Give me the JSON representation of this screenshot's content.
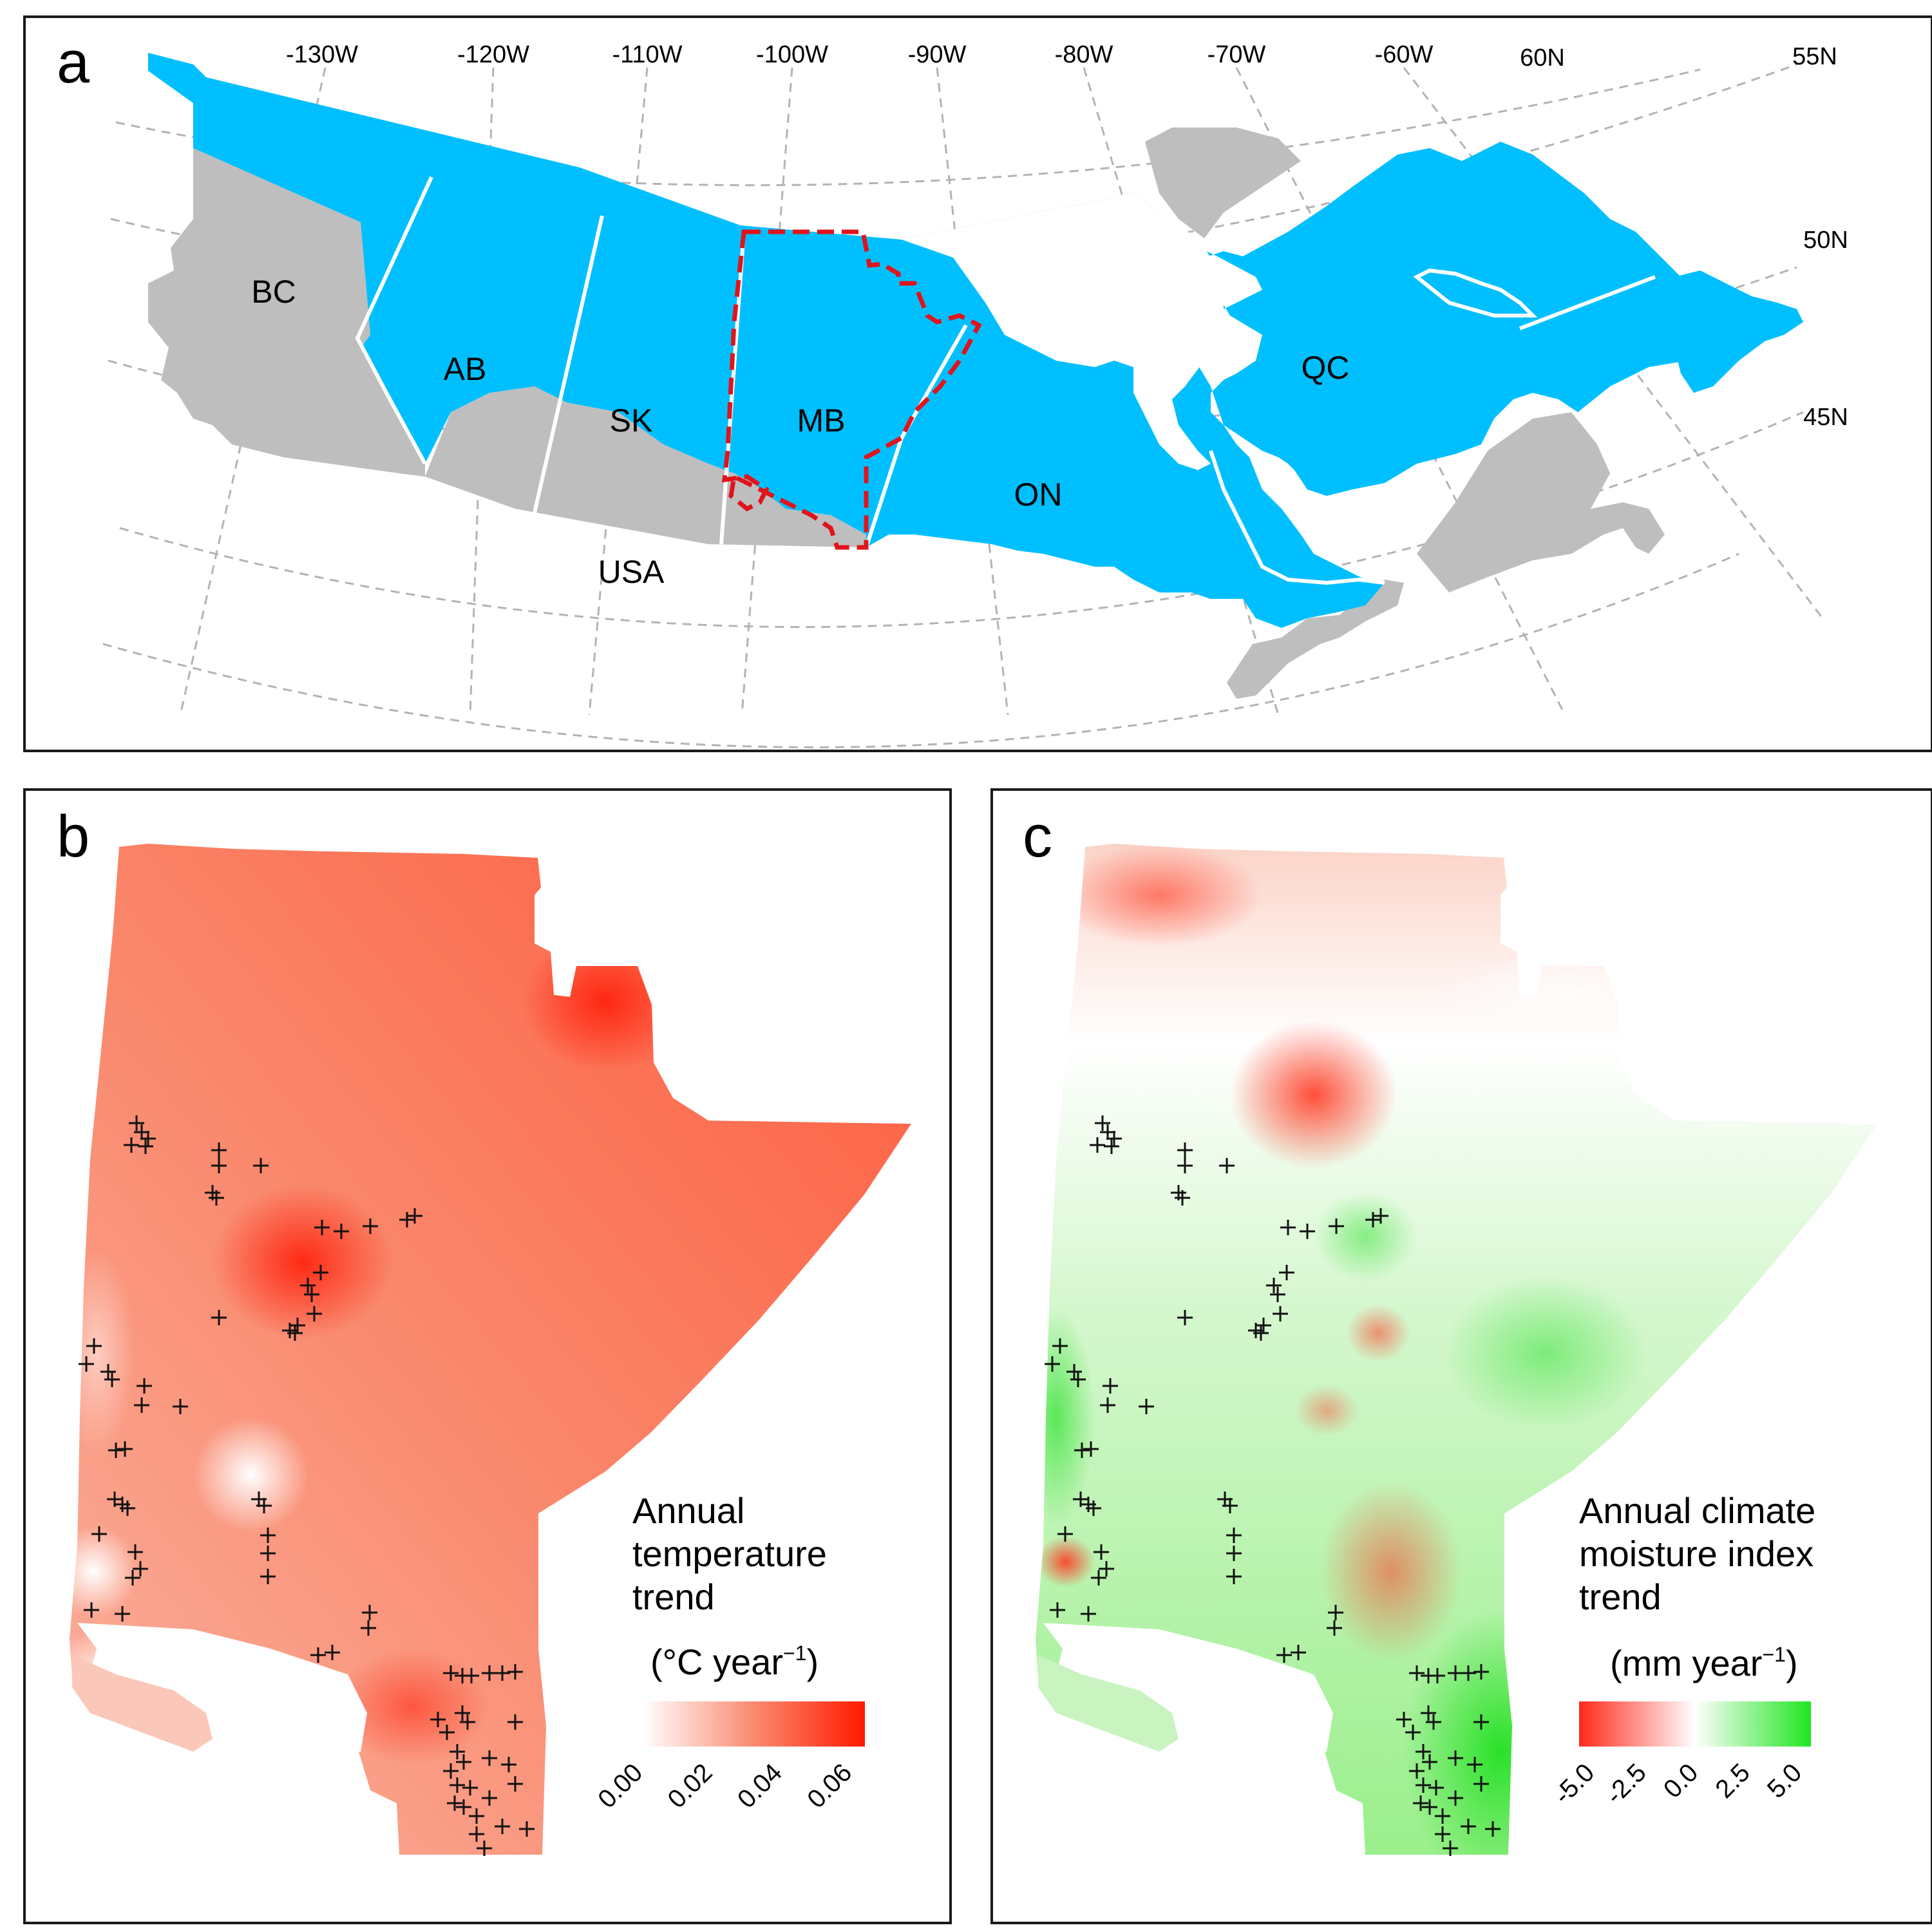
{
  "panels": {
    "a": {
      "letter": "a",
      "longitude_labels": [
        "-130W",
        "-120W",
        "-110W",
        "-100W",
        "-90W",
        "-80W",
        "-70W",
        "-60W"
      ],
      "latitude_labels": [
        "60N",
        "55N",
        "50N",
        "45N"
      ],
      "region_labels": {
        "bc": "BC",
        "ab": "AB",
        "sk": "SK",
        "mb": "MB",
        "on": "ON",
        "qc": "QC",
        "usa": "USA"
      },
      "colors": {
        "highlight": "#00bfff",
        "other_land": "#bebebe",
        "study_boundary": "#e0141b"
      }
    },
    "b": {
      "letter": "b",
      "legend_title": [
        "Annual",
        "temperature",
        "trend"
      ],
      "legend_units": {
        "prefix": "(°C year",
        "superscript": "−1",
        "suffix": ")"
      },
      "legend_ticks": [
        "0.00",
        "0.02",
        "0.04",
        "0.06"
      ],
      "color_scale": {
        "low": "#ffffff",
        "high": "#ff1a00",
        "range": [
          0.0,
          0.07
        ]
      }
    },
    "c": {
      "letter": "c",
      "legend_title": [
        "Annual climate",
        "moisture index",
        "trend"
      ],
      "legend_units": {
        "prefix": "(mm year",
        "superscript": "−1",
        "suffix": ")"
      },
      "legend_ticks": [
        "-5.0",
        "-2.5",
        "0.0",
        "2.5",
        "5.0"
      ],
      "color_scale": {
        "low": "#ff2a1a",
        "mid": "#ffffff",
        "high": "#1ee61e",
        "range": [
          -6.0,
          6.0
        ]
      }
    }
  }
}
